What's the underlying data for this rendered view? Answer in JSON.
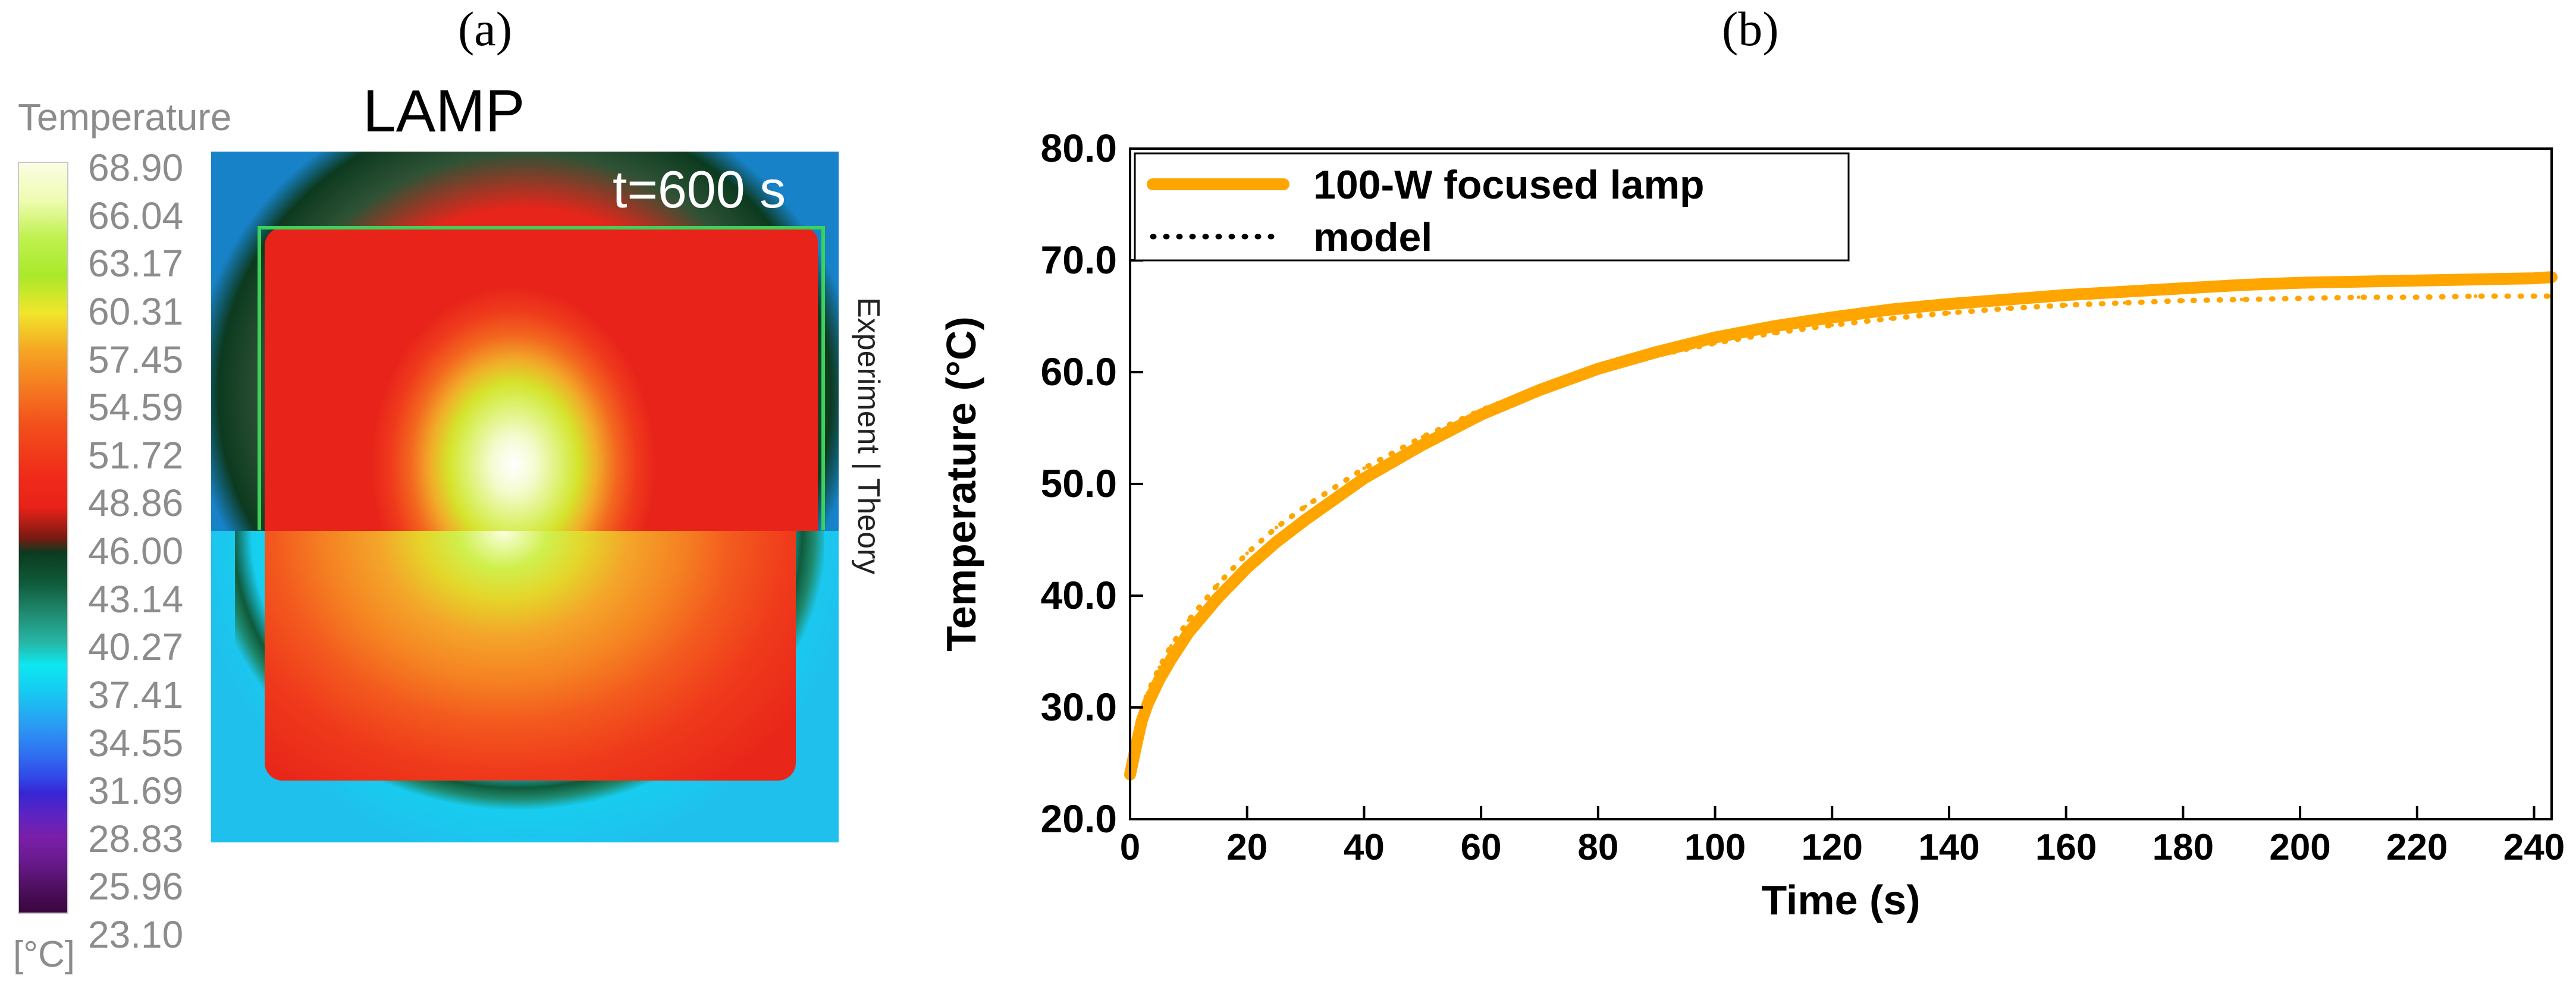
{
  "panel_labels": {
    "a": "(a)",
    "b": "(b)"
  },
  "heatmap_panel": {
    "title": "LAMP",
    "time_label": "t=600 s",
    "side_label": "Experiment | Theory",
    "colorbar": {
      "title": "Temperature",
      "unit": "[°C]",
      "ticks": [
        "68.90",
        "66.04",
        "63.17",
        "60.31",
        "57.45",
        "54.59",
        "51.72",
        "48.86",
        "46.00",
        "43.14",
        "40.27",
        "37.41",
        "34.55",
        "31.69",
        "28.83",
        "25.96",
        "23.10"
      ]
    }
  },
  "chart_data": {
    "type": "line",
    "title": "",
    "xlabel": "Time (s)",
    "ylabel": "Temperature (°C)",
    "xlim": [
      0,
      243
    ],
    "ylim": [
      20,
      80
    ],
    "xticks": [
      0,
      20,
      40,
      60,
      80,
      100,
      120,
      140,
      160,
      180,
      200,
      220,
      240
    ],
    "yticks": [
      20,
      30,
      40,
      50,
      60,
      70,
      80
    ],
    "ytick_labels": [
      "20.0",
      "30.0",
      "40.0",
      "50.0",
      "60.0",
      "70.0",
      "80.0"
    ],
    "legend_position": "top-left",
    "series": [
      {
        "name": "100-W focused lamp",
        "style": "solid",
        "color": "#ffa500",
        "x": [
          0,
          1,
          2,
          3,
          5,
          7,
          10,
          15,
          20,
          25,
          30,
          40,
          50,
          60,
          70,
          80,
          90,
          100,
          110,
          120,
          130,
          140,
          150,
          160,
          170,
          180,
          190,
          200,
          210,
          220,
          230,
          240,
          243
        ],
        "y": [
          24.0,
          26.5,
          28.8,
          30.3,
          32.5,
          34.3,
          36.7,
          39.8,
          42.5,
          44.8,
          46.8,
          50.5,
          53.5,
          56.2,
          58.4,
          60.3,
          61.8,
          63.1,
          64.1,
          64.9,
          65.6,
          66.1,
          66.5,
          66.9,
          67.2,
          67.5,
          67.8,
          68.0,
          68.1,
          68.2,
          68.3,
          68.4,
          68.5
        ]
      },
      {
        "name": "model",
        "style": "dotted",
        "color": "#ffa500",
        "x": [
          0,
          1,
          2,
          3,
          5,
          7,
          10,
          15,
          20,
          25,
          30,
          40,
          50,
          60,
          70,
          80,
          90,
          100,
          110,
          120,
          130,
          140,
          150,
          160,
          170,
          180,
          190,
          200,
          210,
          220,
          230,
          240,
          243
        ],
        "y": [
          24.0,
          27.3,
          29.6,
          31.3,
          33.6,
          35.5,
          37.8,
          41.0,
          43.8,
          46.1,
          48.0,
          51.4,
          54.2,
          56.6,
          58.6,
          60.2,
          61.5,
          62.6,
          63.5,
          64.2,
          64.8,
          65.3,
          65.7,
          66.0,
          66.2,
          66.4,
          66.5,
          66.6,
          66.7,
          66.7,
          66.8,
          66.8,
          66.8
        ]
      }
    ]
  }
}
